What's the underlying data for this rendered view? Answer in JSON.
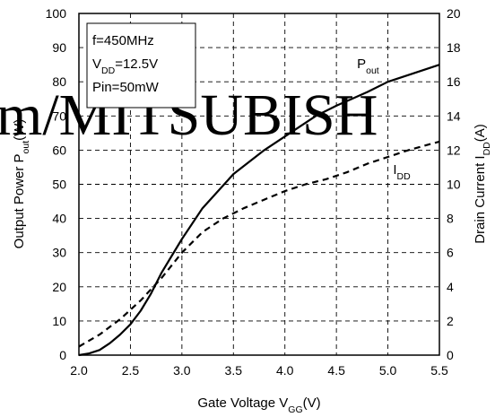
{
  "watermark": "m/MITSUBISH",
  "chart_data": {
    "type": "line",
    "xlabel": "Gate Voltage V_GG(V)",
    "ylabel_left": "Output Power P_out(W)",
    "ylabel_right": "Drain Current I_DD(A)",
    "xlim": [
      2.0,
      5.5
    ],
    "ylim_left": [
      0,
      100
    ],
    "ylim_right": [
      0,
      20
    ],
    "x_ticks": [
      "2.0",
      "2.5",
      "3.0",
      "3.5",
      "4.0",
      "4.5",
      "5.0",
      "5.5"
    ],
    "y_ticks_left": [
      "0",
      "10",
      "20",
      "30",
      "40",
      "50",
      "60",
      "70",
      "80",
      "90",
      "100"
    ],
    "y_ticks_right": [
      "0",
      "2",
      "4",
      "6",
      "8",
      "10",
      "12",
      "14",
      "16",
      "18",
      "20"
    ],
    "grid": true,
    "annotation": [
      "f=450MHz",
      "V_DD=12.5V",
      "Pin=50mW"
    ],
    "series": [
      {
        "name": "P_out",
        "axis": "left",
        "style": "solid",
        "x": [
          2.0,
          2.1,
          2.2,
          2.3,
          2.4,
          2.5,
          2.6,
          2.7,
          2.8,
          2.9,
          3.0,
          3.2,
          3.5,
          3.8,
          4.0,
          4.3,
          4.5,
          4.8,
          5.0,
          5.3,
          5.5
        ],
        "values": [
          0,
          0.5,
          1.5,
          3.5,
          6,
          9,
          13,
          18,
          24,
          29,
          34,
          43,
          53,
          60,
          64,
          70,
          73,
          77,
          80,
          83,
          85
        ]
      },
      {
        "name": "I_DD",
        "axis": "right",
        "style": "dashed",
        "x": [
          2.0,
          2.2,
          2.4,
          2.6,
          2.8,
          3.0,
          3.2,
          3.4,
          3.6,
          3.8,
          4.0,
          4.2,
          4.4,
          4.6,
          4.8,
          5.0,
          5.2,
          5.5
        ],
        "values": [
          0.5,
          1.2,
          2.1,
          3.2,
          4.5,
          6.0,
          7.2,
          8.0,
          8.6,
          9.1,
          9.6,
          10.0,
          10.3,
          10.7,
          11.2,
          11.6,
          12.0,
          12.5
        ]
      }
    ],
    "series_labels": [
      {
        "series": "P_out",
        "main": "P",
        "sub": "out",
        "x": 4.7,
        "y": 84
      },
      {
        "series": "I_DD",
        "main": "I",
        "sub": "DD",
        "x": 5.05,
        "y": 53
      }
    ]
  }
}
